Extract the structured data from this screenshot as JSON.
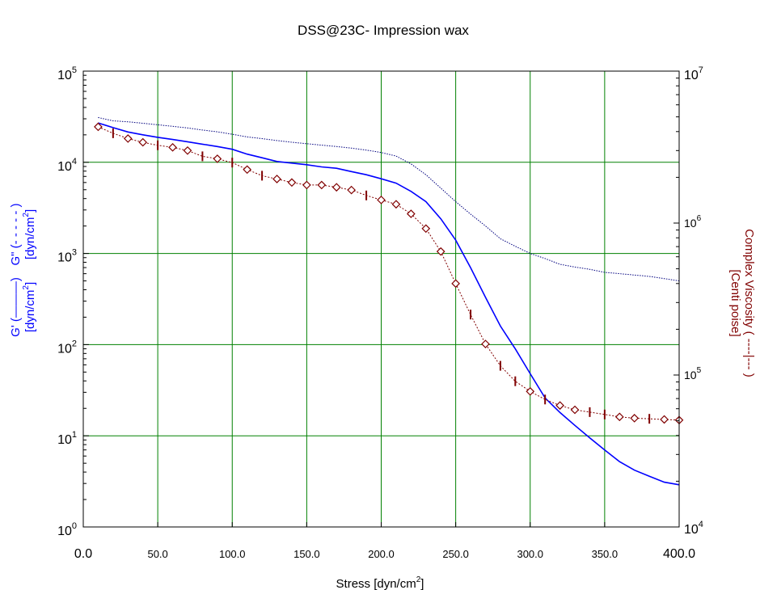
{
  "chart_data": {
    "type": "line",
    "title": "DSS@23C- Impression wax",
    "xlabel": {
      "text": "Stress [dyn/cm",
      "sup": "2",
      "tail": "]"
    },
    "x_range": [
      0,
      400
    ],
    "x_ticks": [
      "0.0",
      "50.0",
      "100.0",
      "150.0",
      "200.0",
      "250.0",
      "300.0",
      "350.0",
      "400.0"
    ],
    "x_tick_values": [
      0,
      50,
      100,
      150,
      200,
      250,
      300,
      350,
      400
    ],
    "y_left": {
      "scale": "log",
      "range": [
        1,
        100000
      ],
      "tick_exponents": [
        "0",
        "1",
        "2",
        "3",
        "4",
        "5"
      ],
      "tick_base": "10",
      "label_gprime_line1": "G' (———)",
      "label_gprime_line2_pre": "[dyn/cm",
      "label_gprime_line2_sup": "2",
      "label_gprime_line2_post": "]",
      "label_gdouble_line1": "G\" (- - - - - )",
      "label_gdouble_line2_pre": "[dyn/cm",
      "label_gdouble_line2_sup": "2",
      "label_gdouble_line2_post": "]"
    },
    "y_right": {
      "scale": "log",
      "range": [
        10000,
        10000000
      ],
      "tick_exponents": [
        "4",
        "5",
        "6",
        "7"
      ],
      "tick_base": "10",
      "label_line1": "Complex Viscosity ( ----|--- )",
      "label_line2": "[Centi poise]"
    },
    "grid": true,
    "colors": {
      "grid": "#008000",
      "g_prime": "#0000ff",
      "g_double_prime": "#00007f",
      "viscosity": "#800000",
      "axis": "#000000"
    },
    "series": [
      {
        "axis": "left",
        "style": "solid",
        "x": [
          10,
          20,
          30,
          40,
          50,
          60,
          70,
          80,
          90,
          100,
          110,
          120,
          130,
          140,
          150,
          160,
          170,
          180,
          190,
          200,
          210,
          220,
          230,
          240,
          250,
          260,
          270,
          280,
          290,
          300,
          310,
          320,
          330,
          340,
          350,
          360,
          370,
          380,
          390,
          400
        ],
        "y": [
          27000,
          24000,
          21500,
          20000,
          18800,
          17800,
          16800,
          15800,
          14900,
          13900,
          12300,
          11200,
          10200,
          9800,
          9400,
          8900,
          8600,
          7900,
          7300,
          6600,
          5900,
          4800,
          3700,
          2400,
          1400,
          700,
          330,
          160,
          90,
          48,
          26,
          18,
          13,
          9.5,
          7,
          5.2,
          4.2,
          3.6,
          3.1,
          2.9
        ]
      },
      {
        "axis": "left",
        "style": "dotted",
        "x": [
          10,
          20,
          30,
          40,
          50,
          60,
          70,
          80,
          90,
          100,
          110,
          120,
          130,
          140,
          150,
          160,
          170,
          180,
          190,
          200,
          210,
          220,
          230,
          240,
          250,
          260,
          270,
          280,
          290,
          300,
          310,
          320,
          330,
          340,
          350,
          360,
          370,
          380,
          390,
          400
        ],
        "y": [
          31000,
          28500,
          27800,
          26800,
          25800,
          24800,
          23800,
          22600,
          21600,
          20300,
          19000,
          18200,
          17300,
          16600,
          16000,
          15400,
          14900,
          14300,
          13600,
          12800,
          11700,
          9600,
          7300,
          5200,
          3700,
          2700,
          2000,
          1450,
          1200,
          1000,
          880,
          760,
          710,
          670,
          620,
          600,
          580,
          560,
          530,
          500
        ]
      },
      {
        "axis": "right",
        "style": "marker-line",
        "x": [
          10,
          20,
          30,
          40,
          50,
          60,
          70,
          80,
          90,
          100,
          110,
          120,
          130,
          140,
          150,
          160,
          170,
          180,
          190,
          200,
          210,
          220,
          230,
          240,
          250,
          260,
          270,
          280,
          290,
          300,
          310,
          320,
          330,
          340,
          350,
          360,
          370,
          380,
          390,
          400
        ],
        "y": [
          4300000,
          3900000,
          3600000,
          3400000,
          3250000,
          3150000,
          3000000,
          2750000,
          2650000,
          2500000,
          2250000,
          2050000,
          1950000,
          1850000,
          1780000,
          1780000,
          1720000,
          1650000,
          1520000,
          1420000,
          1330000,
          1150000,
          920000,
          650000,
          400000,
          250000,
          160000,
          115000,
          91000,
          78000,
          69000,
          63000,
          59000,
          57000,
          55000,
          53000,
          52000,
          51500,
          51000,
          50500
        ],
        "diamond_x": [
          10,
          30,
          40,
          60,
          70,
          90,
          110,
          130,
          140,
          150,
          160,
          170,
          180,
          200,
          210,
          220,
          230,
          240,
          250,
          270,
          300,
          320,
          330,
          360,
          370,
          390,
          400
        ],
        "tick_x": [
          20,
          50,
          80,
          100,
          120,
          190,
          260,
          280,
          290,
          310,
          340,
          350,
          380
        ]
      }
    ]
  }
}
